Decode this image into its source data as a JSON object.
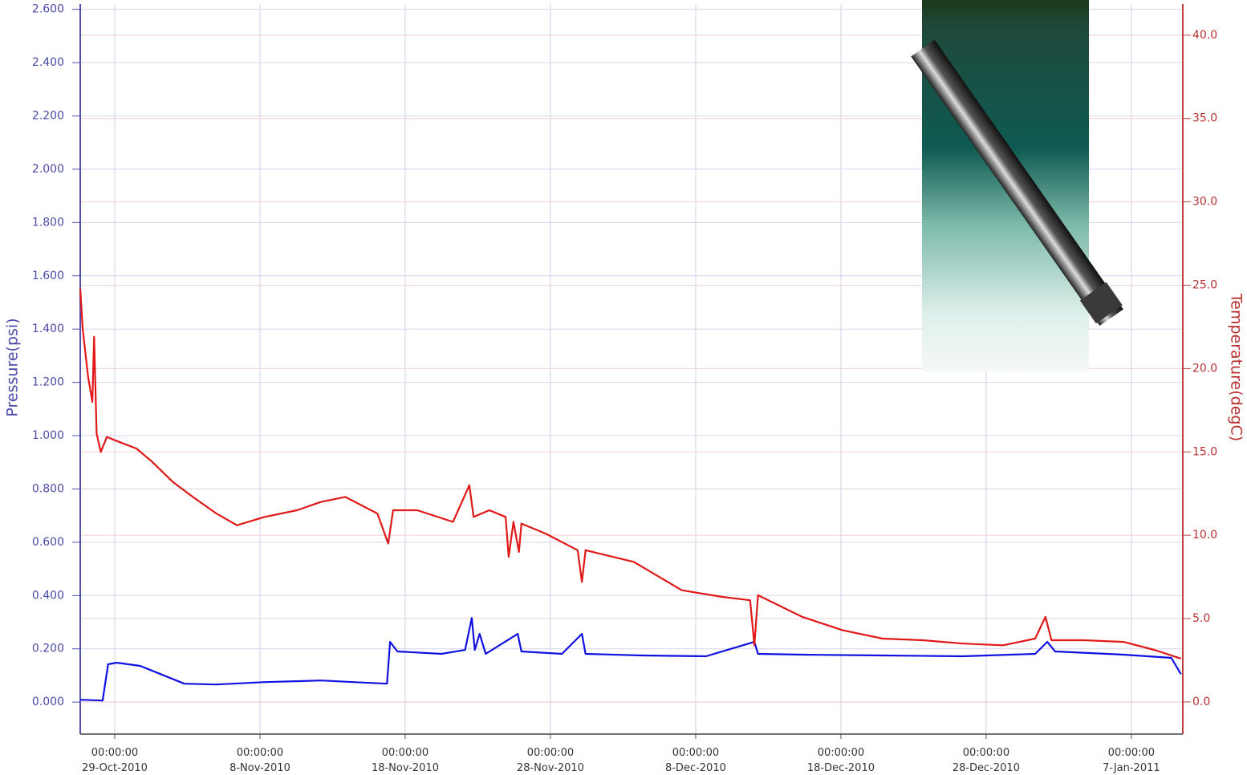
{
  "chart_data": {
    "type": "line",
    "ylabel": "Pressure(psi)",
    "y2label": "Temperature(degC)",
    "xlim": [
      "2010-10-26T15:00",
      "2011-01-10T13:00"
    ],
    "xticks": [
      {
        "value": "2010-10-29T00:00",
        "label": "00:00:00\n29-Oct-2010"
      },
      {
        "value": "2010-11-08T00:00",
        "label": "00:00:00\n8-Nov-2010"
      },
      {
        "value": "2010-11-18T00:00",
        "label": "00:00:00\n18-Nov-2010"
      },
      {
        "value": "2010-11-28T00:00",
        "label": "00:00:00\n28-Nov-2010"
      },
      {
        "value": "2010-12-08T00:00",
        "label": "00:00:00\n8-Dec-2010"
      },
      {
        "value": "2010-12-18T00:00",
        "label": "00:00:00\n18-Dec-2010"
      },
      {
        "value": "2010-12-28T00:00",
        "label": "00:00:00\n28-Dec-2010"
      },
      {
        "value": "2011-01-07T00:00",
        "label": "00:00:00\n7-Jan-2011"
      }
    ],
    "ylim": [
      -0.12,
      2.62
    ],
    "yticks": [
      {
        "value": 0,
        "label": "0.000"
      },
      {
        "value": 0.2,
        "label": "0.200"
      },
      {
        "value": 0.4,
        "label": "0.400"
      },
      {
        "value": 0.6,
        "label": "0.600"
      },
      {
        "value": 0.8,
        "label": "0.800"
      },
      {
        "value": 1.0,
        "label": "1.000"
      },
      {
        "value": 1.2,
        "label": "1.200"
      },
      {
        "value": 1.4,
        "label": "1.400"
      },
      {
        "value": 1.6,
        "label": "1.600"
      },
      {
        "value": 1.8,
        "label": "1.800"
      },
      {
        "value": 2.0,
        "label": "2.000"
      },
      {
        "value": 2.2,
        "label": "2.200"
      },
      {
        "value": 2.4,
        "label": "2.400"
      },
      {
        "value": 2.6,
        "label": "2.600"
      }
    ],
    "y2lim": [
      -1.93,
      41.87
    ],
    "y2ticks": [
      {
        "value": 0,
        "label": "0.0"
      },
      {
        "value": 5,
        "label": "5.0"
      },
      {
        "value": 10,
        "label": "10.0"
      },
      {
        "value": 15,
        "label": "15.0"
      },
      {
        "value": 20,
        "label": "20.0"
      },
      {
        "value": 25,
        "label": "25.0"
      },
      {
        "value": 30,
        "label": "30.0"
      },
      {
        "value": 35,
        "label": "35.0"
      },
      {
        "value": 40,
        "label": "40.0"
      }
    ],
    "grid": true,
    "series": [
      {
        "color": "#1010e0",
        "axis": "y",
        "x": [
          "2010-10-26T15:00",
          "2010-10-28T04:00",
          "2010-10-28T13:00",
          "2010-10-29T03:00",
          "2010-10-30T18:00",
          "2010-11-01T04:00",
          "2010-11-02T19:00",
          "2010-11-05T00:00",
          "2010-11-08T08:00",
          "2010-11-12T05:00",
          "2010-11-14T10:00",
          "2010-11-16T18:00",
          "2010-11-16T23:00",
          "2010-11-17T11:00",
          "2010-11-20T12:00",
          "2010-11-22T03:00",
          "2010-11-22T14:00",
          "2010-11-22T19:00",
          "2010-11-23T03:00",
          "2010-11-23T13:00",
          "2010-11-25T18:00",
          "2010-11-26T00:00",
          "2010-11-28T19:00",
          "2010-11-30T04:00",
          "2010-11-30T10:00",
          "2010-12-04T07:00",
          "2010-12-08T17:00",
          "2010-12-12T01:00",
          "2010-12-12T07:00",
          "2010-12-15T08:00",
          "2010-12-20T21:00",
          "2010-12-26T10:00",
          "2010-12-31T09:00",
          "2011-01-01T05:00",
          "2011-01-01T18:00",
          "2011-01-06T11:00",
          "2011-01-09T18:00",
          "2011-01-10T10:00"
        ],
        "values": [
          0.009,
          0.006,
          0.142,
          0.148,
          0.136,
          0.105,
          0.069,
          0.066,
          0.075,
          0.081,
          0.075,
          0.069,
          0.226,
          0.19,
          0.181,
          0.196,
          0.316,
          0.196,
          0.256,
          0.181,
          0.256,
          0.19,
          0.181,
          0.256,
          0.181,
          0.175,
          0.172,
          0.226,
          0.181,
          0.178,
          0.175,
          0.172,
          0.181,
          0.226,
          0.19,
          0.178,
          0.166,
          0.105
        ]
      },
      {
        "color": "#e01818",
        "axis": "y2",
        "x": [
          "2010-10-26T15:00",
          "2010-10-26T19:00",
          "2010-10-27T04:00",
          "2010-10-27T11:00",
          "2010-10-27T14:00",
          "2010-10-27T18:00",
          "2010-10-28T01:00",
          "2010-10-28T11:00",
          "2010-10-29T00:00",
          "2010-10-30T12:00",
          "2010-10-31T14:00",
          "2010-11-02T00:00",
          "2010-11-03T09:00",
          "2010-11-05T00:00",
          "2010-11-06T10:00",
          "2010-11-08T08:00",
          "2010-11-10T13:00",
          "2010-11-12T05:00",
          "2010-11-13T21:00",
          "2010-11-16T02:00",
          "2010-11-16T20:00",
          "2010-11-17T04:00",
          "2010-11-18T20:00",
          "2010-11-21T07:00",
          "2010-11-22T10:00",
          "2010-11-22T17:00",
          "2010-11-23T19:00",
          "2010-11-24T22:00",
          "2010-11-25T03:00",
          "2010-11-25T11:00",
          "2010-11-25T20:00",
          "2010-11-26T00:00",
          "2010-11-27T16:00",
          "2010-11-29T21:00",
          "2010-11-30T04:00",
          "2010-11-30T10:00",
          "2010-12-03T18:00",
          "2010-12-07T01:00",
          "2010-12-09T20:00",
          "2010-12-11T18:00",
          "2010-12-12T01:00",
          "2010-12-12T07:00",
          "2010-12-15T08:00",
          "2010-12-18T03:00",
          "2010-12-20T21:00",
          "2010-12-23T15:00",
          "2010-12-26T10:00",
          "2010-12-29T04:00",
          "2010-12-31T09:00",
          "2011-01-01T02:00",
          "2011-01-01T12:00",
          "2011-01-03T17:00",
          "2011-01-06T11:00",
          "2011-01-08T16:00",
          "2011-01-10T10:00"
        ],
        "values": [
          24.8,
          22.4,
          19.5,
          18.0,
          21.9,
          16.1,
          15.0,
          15.9,
          15.7,
          15.2,
          14.4,
          13.2,
          12.3,
          11.3,
          10.6,
          11.1,
          11.5,
          12.0,
          12.3,
          11.3,
          9.5,
          11.5,
          11.5,
          10.8,
          13.0,
          11.1,
          11.5,
          11.1,
          8.7,
          10.8,
          9.0,
          10.7,
          10.1,
          9.1,
          7.2,
          9.1,
          8.4,
          6.7,
          6.3,
          6.1,
          3.4,
          6.4,
          5.1,
          4.3,
          3.8,
          3.7,
          3.5,
          3.4,
          3.8,
          5.1,
          3.7,
          3.7,
          3.6,
          3.1,
          2.6
        ]
      }
    ]
  }
}
